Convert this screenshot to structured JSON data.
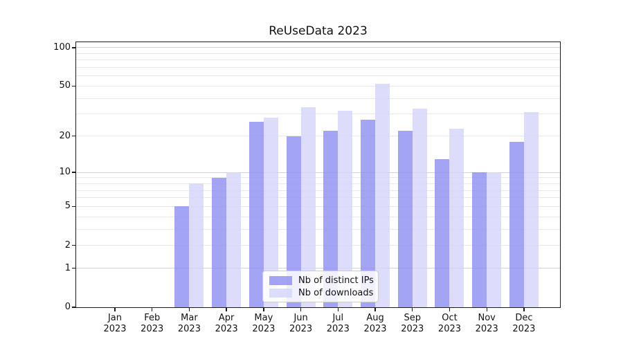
{
  "chart_data": {
    "type": "bar",
    "title": "ReUseData 2023",
    "categories": [
      "Jan",
      "Feb",
      "Mar",
      "Apr",
      "May",
      "Jun",
      "Jul",
      "Aug",
      "Sep",
      "Oct",
      "Nov",
      "Dec"
    ],
    "year": "2023",
    "series": [
      {
        "name": "Nb of distinct IPs",
        "color": "rgba(141, 141, 243, 0.8)",
        "values": [
          0,
          0,
          5,
          9,
          26,
          20,
          22,
          27,
          22,
          13,
          10,
          18
        ]
      },
      {
        "name": "Nb of downloads",
        "color": "rgba(212, 212, 250, 0.8)",
        "values": [
          0,
          0,
          8,
          10,
          28,
          34,
          32,
          52,
          33,
          23,
          10,
          31
        ]
      }
    ],
    "xlabel": "",
    "ylabel": "",
    "y_scale": "log1p",
    "ylim": [
      0,
      110.4
    ],
    "y_ticks": [
      0,
      1,
      2,
      5,
      10,
      20,
      50,
      100
    ],
    "gridlines": {
      "major": [
        1,
        10,
        100
      ],
      "minor": [
        2,
        3,
        4,
        5,
        6,
        7,
        8,
        9,
        20,
        30,
        40,
        50,
        60,
        70,
        80,
        90
      ]
    },
    "grid": "on",
    "legend_position": "lower center inside",
    "colors": {
      "axis": "#1a1a1a",
      "grid_major": "#d2d2d2",
      "grid_minor": "#e9e9e9",
      "text": "#111111",
      "legend_border": "#cccccc"
    }
  }
}
